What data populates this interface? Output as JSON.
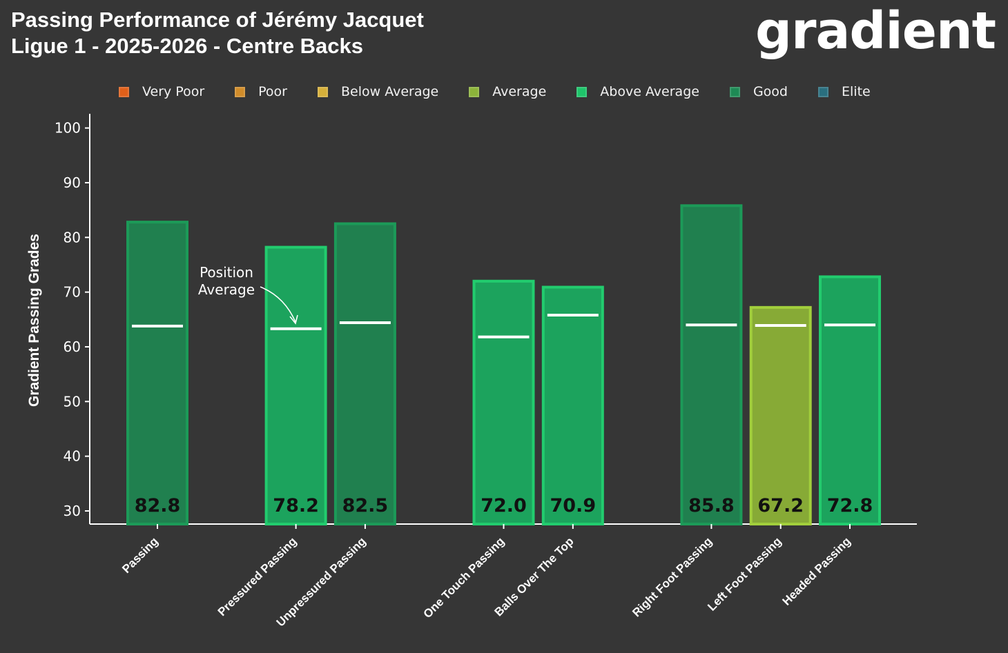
{
  "title_line1": "Passing Performance of Jérémy Jacquet",
  "title_line2": "Ligue 1 - 2025-2026 - Centre Backs",
  "logo": "gradient",
  "legend": [
    {
      "label": "Very Poor",
      "color": "#e0601a"
    },
    {
      "label": "Poor",
      "color": "#d08c2a"
    },
    {
      "label": "Below Average",
      "color": "#d6b03a"
    },
    {
      "label": "Average",
      "color": "#8cb43a"
    },
    {
      "label": "Above Average",
      "color": "#1ec46a"
    },
    {
      "label": "Good",
      "color": "#1e8a55"
    },
    {
      "label": "Elite",
      "color": "#2a6f7f"
    }
  ],
  "chart_data": {
    "type": "bar",
    "title": "Passing Performance of Jérémy Jacquet",
    "ylabel": "Gradient Passing Grades",
    "xlabel": "",
    "ylim": [
      27.6,
      102.6
    ],
    "yticks": [
      30,
      40,
      50,
      60,
      70,
      80,
      90,
      100
    ],
    "categories": [
      "Passing",
      "Pressured Passing",
      "Unpressured Passing",
      "One Touch Passing",
      "Balls Over The Top",
      "Right Foot Passing",
      "Left Foot Passing",
      "Headed Passing"
    ],
    "slots": [
      0,
      2,
      3,
      5,
      6,
      8,
      9,
      10
    ],
    "values": [
      82.8,
      78.2,
      82.5,
      72.0,
      70.9,
      85.8,
      67.2,
      72.8
    ],
    "value_labels": [
      "82.8",
      "78.2",
      "82.5",
      "72.0",
      "70.9",
      "85.8",
      "67.2",
      "72.8"
    ],
    "grades": [
      "Good",
      "Above Average",
      "Good",
      "Above Average",
      "Above Average",
      "Good",
      "Average",
      "Above Average"
    ],
    "position_average": [
      63.8,
      63.3,
      64.4,
      61.8,
      65.8,
      64.0,
      63.9,
      64.0
    ],
    "annotation": {
      "line1": "Position",
      "line2": "Average"
    },
    "grade_styles": {
      "Good": {
        "fill": "#20804f",
        "stroke": "#1c9a58"
      },
      "Above Average": {
        "fill": "#1ca35d",
        "stroke": "#22cc6e"
      },
      "Average": {
        "fill": "#87aa36",
        "stroke": "#a2cf3c"
      }
    }
  }
}
